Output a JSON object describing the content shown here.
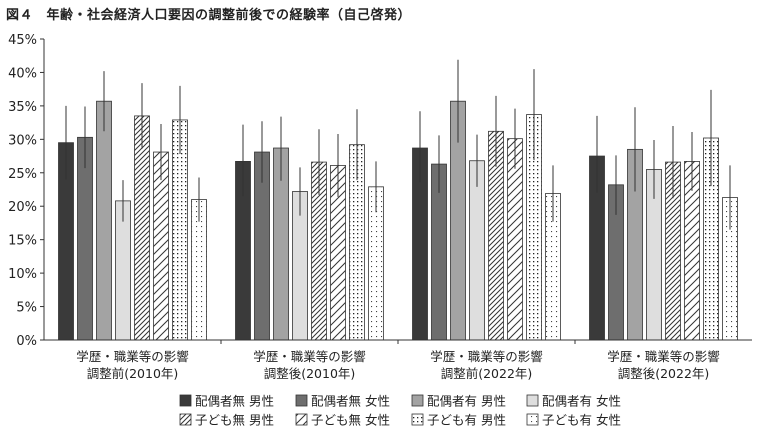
{
  "chart_data": {
    "type": "bar",
    "title": "図４　年齢・社会経済人口要因の調整前後での経験率（自己啓発）",
    "xlabel": "",
    "ylabel": "",
    "ylim": [
      0,
      45
    ],
    "yticks": [
      "0%",
      "5%",
      "10%",
      "15%",
      "20%",
      "25%",
      "30%",
      "35%",
      "40%",
      "45%"
    ],
    "grid": false,
    "legend_position": "bottom",
    "categories": [
      [
        "学歴・職業等の影響",
        "調整前(2010年)"
      ],
      [
        "学歴・職業等の影響",
        "調整後(2010年)"
      ],
      [
        "学歴・職業等の影響",
        "調整前(2022年)"
      ],
      [
        "学歴・職業等の影響",
        "調整後(2022年)"
      ]
    ],
    "series": [
      {
        "name": "配偶者無 男性",
        "values": [
          29.5,
          26.7,
          28.7,
          27.5
        ],
        "err_low": [
          24.0,
          21.5,
          23.6,
          22.0
        ],
        "err_high": [
          35.0,
          32.2,
          34.2,
          33.5
        ],
        "pattern": "solid-dark"
      },
      {
        "name": "配偶者無 女性",
        "values": [
          30.3,
          28.1,
          26.3,
          23.2
        ],
        "err_low": [
          25.7,
          23.5,
          22.0,
          18.7
        ],
        "err_high": [
          34.9,
          32.7,
          30.6,
          27.6
        ],
        "pattern": "solid-mid"
      },
      {
        "name": "配偶者有 男性",
        "values": [
          35.7,
          28.7,
          35.7,
          28.5
        ],
        "err_low": [
          31.2,
          23.8,
          29.5,
          22.2
        ],
        "err_high": [
          40.2,
          33.4,
          41.9,
          34.8
        ],
        "pattern": "solid-light"
      },
      {
        "name": "配偶者有 女性",
        "values": [
          20.8,
          22.2,
          26.8,
          25.5
        ],
        "err_low": [
          17.7,
          18.6,
          22.9,
          21.1
        ],
        "err_high": [
          23.9,
          25.8,
          30.7,
          29.9
        ],
        "pattern": "solid-pale"
      },
      {
        "name": "子ども無 男性",
        "values": [
          33.5,
          26.6,
          31.2,
          26.6
        ],
        "err_low": [
          28.6,
          21.7,
          25.9,
          21.2
        ],
        "err_high": [
          38.4,
          31.5,
          36.5,
          32.0
        ],
        "pattern": "hatch-dense"
      },
      {
        "name": "子ども無 女性",
        "values": [
          28.1,
          26.1,
          30.1,
          26.7
        ],
        "err_low": [
          23.9,
          21.4,
          25.6,
          22.3
        ],
        "err_high": [
          32.3,
          30.8,
          34.6,
          31.1
        ],
        "pattern": "hatch-sparse"
      },
      {
        "name": "子ども有 男性",
        "values": [
          32.9,
          29.2,
          33.7,
          30.2
        ],
        "err_low": [
          27.8,
          23.9,
          26.9,
          23.0
        ],
        "err_high": [
          38.0,
          34.5,
          40.5,
          37.4
        ],
        "pattern": "dots-dense"
      },
      {
        "name": "子ども有 女性",
        "values": [
          21.0,
          22.9,
          21.9,
          21.3
        ],
        "err_low": [
          17.7,
          19.1,
          17.7,
          16.5
        ],
        "err_high": [
          24.3,
          26.7,
          26.1,
          26.1
        ],
        "pattern": "dots-sparse"
      }
    ]
  }
}
